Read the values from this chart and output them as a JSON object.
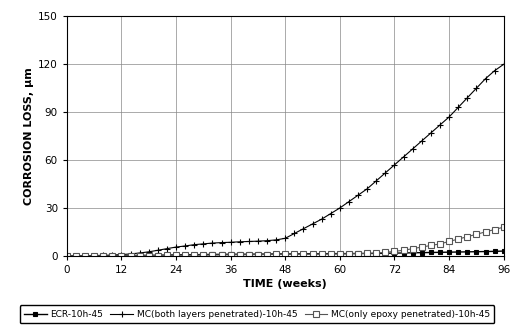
{
  "title": "",
  "xlabel": "TIME (weeks)",
  "ylabel": "CORROSION LOSS, µm",
  "xlim": [
    0,
    96
  ],
  "ylim": [
    0,
    150
  ],
  "xticks": [
    0,
    12,
    24,
    36,
    48,
    60,
    72,
    84,
    96
  ],
  "yticks": [
    0,
    30,
    60,
    90,
    120,
    150
  ],
  "series": [
    {
      "label": "ECR-10h-45",
      "color": "#000000",
      "marker": "s",
      "markersize": 3,
      "linewidth": 1.0,
      "markerfacecolor": "#000000",
      "x": [
        0,
        2,
        4,
        6,
        8,
        10,
        12,
        14,
        16,
        18,
        20,
        22,
        24,
        26,
        28,
        30,
        32,
        34,
        36,
        38,
        40,
        42,
        44,
        46,
        48,
        50,
        52,
        54,
        56,
        58,
        60,
        62,
        64,
        66,
        68,
        70,
        72,
        74,
        76,
        78,
        80,
        82,
        84,
        86,
        88,
        90,
        92,
        94,
        96
      ],
      "y": [
        0,
        0,
        0,
        0,
        0.1,
        0.1,
        0.2,
        0.2,
        0.3,
        0.3,
        0.4,
        0.5,
        0.6,
        0.7,
        0.7,
        0.8,
        0.9,
        0.9,
        1.0,
        1.0,
        1.0,
        1.1,
        1.1,
        1.2,
        1.2,
        1.2,
        1.3,
        1.3,
        1.3,
        1.4,
        1.4,
        1.4,
        1.5,
        1.5,
        1.5,
        1.6,
        1.7,
        1.8,
        1.9,
        2.0,
        2.1,
        2.2,
        2.3,
        2.4,
        2.5,
        2.6,
        2.7,
        2.8,
        3.0
      ]
    },
    {
      "label": "MC(both layers penetrated)-10h-45",
      "color": "#000000",
      "marker": "+",
      "markersize": 5,
      "linewidth": 0.8,
      "markerfacecolor": "#000000",
      "x": [
        0,
        2,
        4,
        6,
        8,
        10,
        12,
        14,
        16,
        18,
        20,
        22,
        24,
        26,
        28,
        30,
        32,
        34,
        36,
        38,
        40,
        42,
        44,
        46,
        48,
        50,
        52,
        54,
        56,
        58,
        60,
        62,
        64,
        66,
        68,
        70,
        72,
        74,
        76,
        78,
        80,
        82,
        84,
        86,
        88,
        90,
        92,
        94,
        96
      ],
      "y": [
        0,
        0,
        0.1,
        0.2,
        0.3,
        0.5,
        0.8,
        1.2,
        1.8,
        2.5,
        3.5,
        4.5,
        5.5,
        6.2,
        7.0,
        7.5,
        8.0,
        8.3,
        8.5,
        8.8,
        9.0,
        9.2,
        9.5,
        10.0,
        11.0,
        14.0,
        17.0,
        20.0,
        23.0,
        26.5,
        30.0,
        34.0,
        38.0,
        42.0,
        47.0,
        52.0,
        57.0,
        62.0,
        67.0,
        72.0,
        77.0,
        82.0,
        87.0,
        93.0,
        99.0,
        105.0,
        111.0,
        116.0,
        120.0
      ]
    },
    {
      "label": "MC(only epoxy penetrated)-10h-45",
      "color": "#555555",
      "marker": "s",
      "markersize": 4,
      "linewidth": 0.8,
      "markerfacecolor": "#ffffff",
      "x": [
        0,
        2,
        4,
        6,
        8,
        10,
        12,
        14,
        16,
        18,
        20,
        22,
        24,
        26,
        28,
        30,
        32,
        34,
        36,
        38,
        40,
        42,
        44,
        46,
        48,
        50,
        52,
        54,
        56,
        58,
        60,
        62,
        64,
        66,
        68,
        70,
        72,
        74,
        76,
        78,
        80,
        82,
        84,
        86,
        88,
        90,
        92,
        94,
        96
      ],
      "y": [
        0,
        0,
        0,
        0,
        0,
        0,
        0.1,
        0.1,
        0.1,
        0.2,
        0.2,
        0.3,
        0.3,
        0.4,
        0.4,
        0.5,
        0.5,
        0.6,
        0.6,
        0.7,
        0.7,
        0.8,
        0.8,
        0.9,
        0.9,
        1.0,
        1.0,
        1.0,
        1.1,
        1.1,
        1.2,
        1.3,
        1.4,
        1.5,
        1.8,
        2.2,
        2.8,
        3.5,
        4.5,
        5.5,
        6.5,
        7.5,
        9.0,
        10.5,
        12.0,
        13.5,
        15.0,
        16.5,
        18.0
      ]
    }
  ],
  "background_color": "#ffffff",
  "grid_color": "#888888",
  "legend_fontsize": 6.5,
  "axis_label_fontsize": 8,
  "tick_fontsize": 7.5,
  "fig_width": 5.14,
  "fig_height": 3.28,
  "dpi": 100
}
